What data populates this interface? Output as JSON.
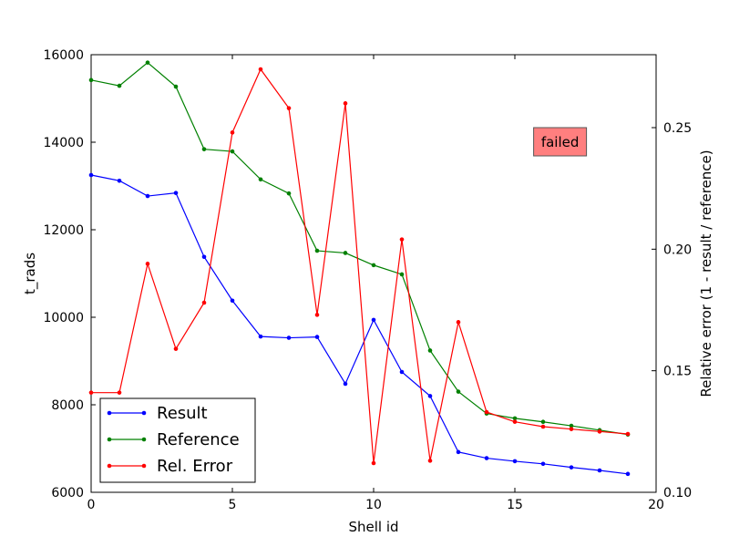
{
  "chart_data": {
    "type": "line",
    "xlabel": "Shell id",
    "ylabel": "t_rads",
    "ylabel_right": "Relative error (1 - result / reference)",
    "xlim": [
      0,
      20
    ],
    "ylim": [
      6000,
      16000
    ],
    "ylim_right": [
      0.1,
      0.28
    ],
    "x_ticks": [
      0,
      5,
      10,
      15,
      20
    ],
    "y_ticks": [
      6000,
      8000,
      10000,
      12000,
      14000,
      16000
    ],
    "y_ticks_right": [
      0.1,
      0.15,
      0.2,
      0.25
    ],
    "grid": false,
    "legend_position": "lower-left",
    "annotation": {
      "text": "failed",
      "color": "#ff7f7f",
      "x": 16.6,
      "y": 14000
    },
    "x": [
      0,
      1,
      2,
      3,
      4,
      5,
      6,
      7,
      8,
      9,
      10,
      11,
      12,
      13,
      14,
      15,
      16,
      17,
      18,
      19
    ],
    "series": [
      {
        "name": "Result",
        "axis": "left",
        "color": "#0000ff",
        "values": [
          13250,
          13120,
          12770,
          12840,
          11380,
          10380,
          9560,
          9530,
          9550,
          8480,
          9940,
          8750,
          8200,
          6920,
          6780,
          6710,
          6650,
          6570,
          6500,
          6420
        ]
      },
      {
        "name": "Reference",
        "axis": "left",
        "color": "#008000",
        "values": [
          15420,
          15290,
          15820,
          15270,
          13840,
          13790,
          13150,
          12830,
          11520,
          11470,
          11190,
          10980,
          9240,
          8300,
          7800,
          7690,
          7610,
          7520,
          7420,
          7320
        ]
      },
      {
        "name": "Rel. Error",
        "axis": "right",
        "color": "#ff0000",
        "values": [
          0.141,
          0.141,
          0.194,
          0.159,
          0.178,
          0.248,
          0.274,
          0.258,
          0.173,
          0.26,
          0.112,
          0.204,
          0.113,
          0.17,
          0.133,
          0.129,
          0.127,
          0.126,
          0.125,
          0.124
        ]
      }
    ]
  }
}
